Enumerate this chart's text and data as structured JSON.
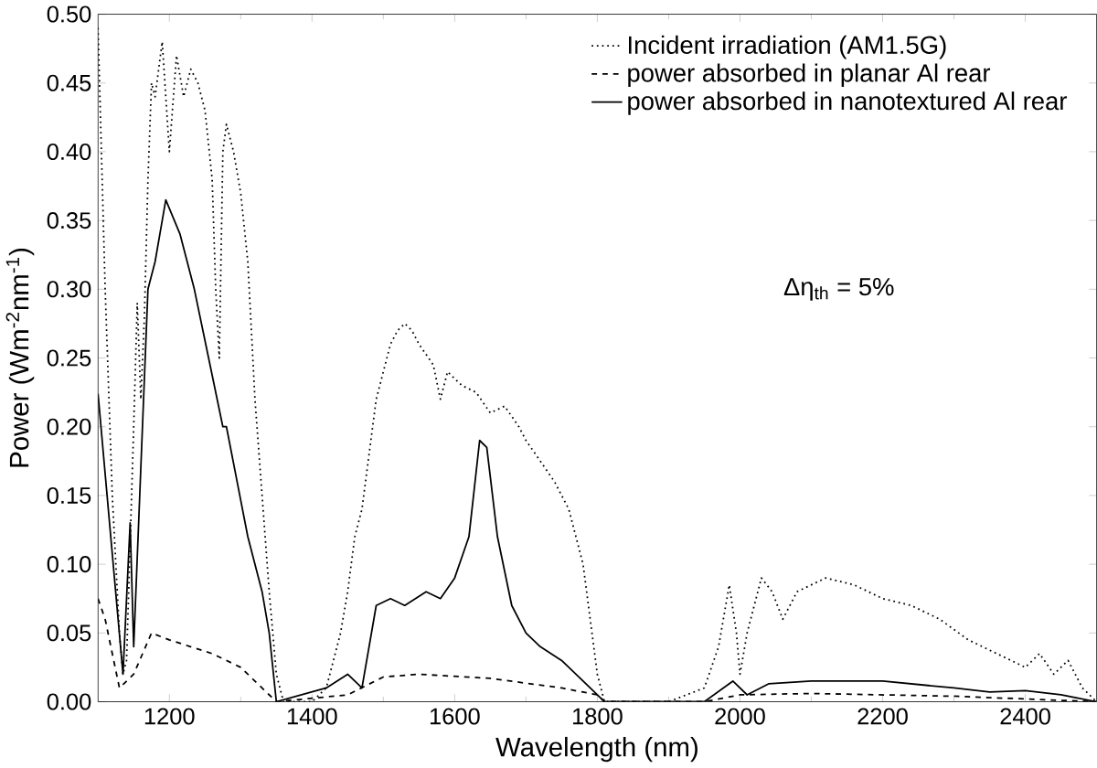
{
  "chart_data": {
    "type": "line",
    "xlabel": "Wavelength (nm)",
    "ylabel": "Power (Wm$^{-2}$nm$^{-1}$)",
    "xlim": [
      1100,
      2500
    ],
    "xticks": [
      1200,
      1400,
      1600,
      1800,
      2000,
      2200,
      2400
    ],
    "ylim": [
      0,
      0.5
    ],
    "yticks": [
      {
        "value": 0,
        "label": "0.00"
      },
      {
        "value": 0.05,
        "label": "0.05"
      },
      {
        "value": 0.1,
        "label": "0.10"
      },
      {
        "value": 0.15,
        "label": "0.15"
      },
      {
        "value": 0.2,
        "label": "0.20"
      },
      {
        "value": 0.25,
        "label": "0.25"
      },
      {
        "value": 0.3,
        "label": "0.30"
      },
      {
        "value": 0.35,
        "label": "0.35"
      },
      {
        "value": 0.4,
        "label": "0.40"
      },
      {
        "value": 0.45,
        "label": "0.45"
      },
      {
        "value": 0.5,
        "label": "0.50"
      }
    ],
    "legend": "top right",
    "grid": false,
    "annotations": [
      "Δη$_{th}$ = 5%"
    ],
    "series": [
      {
        "name": "Incident irradiation (AM1.5G)",
        "color": "#000000",
        "line_style": "dotted",
        "x": [
          1100,
          1110,
          1120,
          1130,
          1135,
          1140,
          1150,
          1155,
          1160,
          1165,
          1170,
          1175,
          1180,
          1190,
          1200,
          1210,
          1220,
          1230,
          1240,
          1250,
          1260,
          1265,
          1270,
          1275,
          1280,
          1290,
          1300,
          1310,
          1320,
          1330,
          1340,
          1350,
          1360,
          1400,
          1420,
          1440,
          1450,
          1460,
          1470,
          1480,
          1490,
          1500,
          1510,
          1520,
          1530,
          1540,
          1550,
          1570,
          1580,
          1590,
          1600,
          1610,
          1630,
          1650,
          1670,
          1690,
          1700,
          1720,
          1740,
          1760,
          1780,
          1790,
          1800,
          1810,
          1900,
          1950,
          1970,
          1985,
          1995,
          2000,
          2010,
          2030,
          2045,
          2060,
          2080,
          2120,
          2160,
          2200,
          2240,
          2280,
          2320,
          2360,
          2400,
          2420,
          2440,
          2460,
          2480,
          2500
        ],
        "values": [
          0.49,
          0.3,
          0.15,
          0.05,
          0.02,
          0.03,
          0.2,
          0.29,
          0.22,
          0.28,
          0.38,
          0.45,
          0.44,
          0.48,
          0.4,
          0.47,
          0.44,
          0.46,
          0.45,
          0.43,
          0.38,
          0.3,
          0.25,
          0.4,
          0.42,
          0.4,
          0.37,
          0.32,
          0.22,
          0.15,
          0.08,
          0.02,
          0,
          0,
          0.01,
          0.05,
          0.08,
          0.12,
          0.14,
          0.18,
          0.22,
          0.24,
          0.26,
          0.27,
          0.275,
          0.27,
          0.26,
          0.245,
          0.22,
          0.24,
          0.235,
          0.23,
          0.225,
          0.21,
          0.215,
          0.2,
          0.19,
          0.175,
          0.16,
          0.14,
          0.1,
          0.06,
          0.02,
          0,
          0,
          0.01,
          0.04,
          0.085,
          0.05,
          0.02,
          0.05,
          0.09,
          0.08,
          0.06,
          0.08,
          0.09,
          0.085,
          0.075,
          0.07,
          0.06,
          0.045,
          0.035,
          0.025,
          0.035,
          0.02,
          0.03,
          0.01,
          0
        ]
      },
      {
        "name": "power absorbed in planar Al rear",
        "color": "#000000",
        "line_style": "dashed",
        "x": [
          1100,
          1110,
          1130,
          1150,
          1175,
          1200,
          1260,
          1300,
          1340,
          1350,
          1450,
          1500,
          1550,
          1650,
          1750,
          1800,
          1810,
          1950,
          2000,
          2100,
          2300,
          2500
        ],
        "values": [
          0.075,
          0.06,
          0.01,
          0.02,
          0.05,
          0.045,
          0.035,
          0.025,
          0.005,
          0,
          0.005,
          0.018,
          0.02,
          0.017,
          0.01,
          0.005,
          0,
          0,
          0.005,
          0.006,
          0.004,
          0
        ]
      },
      {
        "name": "power absorbed in nanotextured Al rear",
        "color": "#000000",
        "line_style": "solid",
        "x": [
          1100,
          1135,
          1145,
          1150,
          1170,
          1180,
          1195,
          1215,
          1235,
          1255,
          1275,
          1280,
          1295,
          1310,
          1330,
          1340,
          1350,
          1420,
          1450,
          1470,
          1490,
          1510,
          1530,
          1560,
          1580,
          1600,
          1620,
          1635,
          1645,
          1660,
          1680,
          1700,
          1720,
          1750,
          1770,
          1790,
          1810,
          1950,
          1990,
          2010,
          2040,
          2100,
          2200,
          2300,
          2350,
          2400,
          2450,
          2500
        ],
        "values": [
          0.224,
          0.02,
          0.13,
          0.04,
          0.3,
          0.32,
          0.365,
          0.34,
          0.3,
          0.25,
          0.2,
          0.2,
          0.16,
          0.12,
          0.08,
          0.05,
          0,
          0.01,
          0.02,
          0.01,
          0.07,
          0.075,
          0.07,
          0.08,
          0.075,
          0.09,
          0.12,
          0.19,
          0.185,
          0.12,
          0.07,
          0.05,
          0.04,
          0.03,
          0.02,
          0.01,
          0,
          0,
          0.015,
          0.005,
          0.013,
          0.015,
          0.015,
          0.01,
          0.007,
          0.008,
          0.005,
          0
        ]
      }
    ]
  }
}
